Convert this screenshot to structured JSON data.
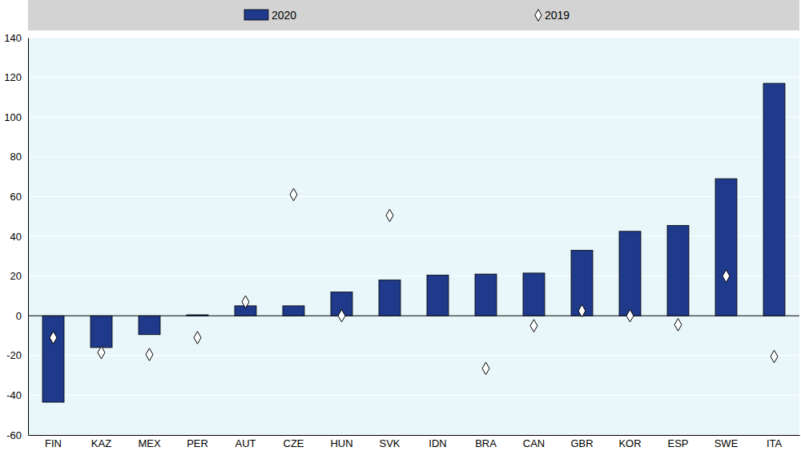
{
  "chart_data": {
    "type": "bar",
    "categories": [
      "FIN",
      "KAZ",
      "MEX",
      "PER",
      "AUT",
      "CZE",
      "HUN",
      "SVK",
      "IDN",
      "BRA",
      "CAN",
      "GBR",
      "KOR",
      "ESP",
      "SWE",
      "ITA"
    ],
    "series": [
      {
        "name": "2020",
        "type": "bar",
        "color": "#1f3a8a",
        "values": [
          -43.5,
          -16,
          -9.5,
          0.5,
          5,
          5,
          12,
          18,
          20.5,
          21,
          21.5,
          33,
          42.5,
          45.5,
          69,
          117
        ]
      },
      {
        "name": "2019",
        "type": "scatter",
        "marker": "diamond",
        "color": "#ffffff",
        "values": [
          -11,
          -18.5,
          -19.5,
          -11,
          7,
          61,
          0,
          50.5,
          null,
          -26.5,
          -5,
          2.5,
          0,
          -4.5,
          20,
          -20.5
        ]
      }
    ],
    "ylim": [
      -60,
      140
    ],
    "yticks": [
      -60,
      -40,
      -20,
      0,
      20,
      40,
      60,
      80,
      100,
      120,
      140
    ],
    "grid": true,
    "legend": "top"
  }
}
